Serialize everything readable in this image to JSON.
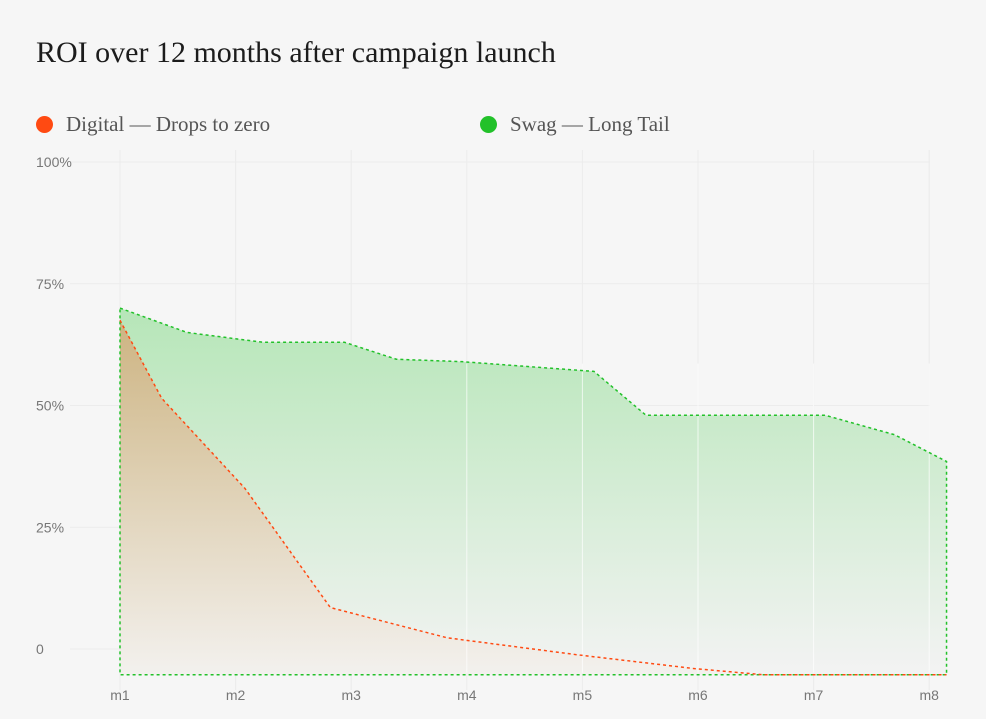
{
  "chart_data": {
    "type": "area",
    "title": "ROI over 12 months after campaign launch",
    "legend_position": "top",
    "grid": true,
    "yticks": [
      {
        "v": 100,
        "label": "100%"
      },
      {
        "v": 75,
        "label": "75%"
      },
      {
        "v": 50,
        "label": "50%"
      },
      {
        "v": 25,
        "label": "25%"
      },
      {
        "v": 0,
        "label": "0"
      }
    ],
    "xticks": [
      {
        "v": 1,
        "label": "m1"
      },
      {
        "v": 2,
        "label": "m2"
      },
      {
        "v": 3,
        "label": "m3"
      },
      {
        "v": 4,
        "label": "m4"
      },
      {
        "v": 5,
        "label": "m5"
      },
      {
        "v": 6,
        "label": "m6"
      },
      {
        "v": 7,
        "label": "m7"
      },
      {
        "v": 8,
        "label": "m8"
      }
    ],
    "ylim": [
      -5.3,
      100
    ],
    "series": [
      {
        "name": "Swag — Long Tail",
        "color": "#22c12a",
        "points": [
          [
            1,
            70
          ],
          [
            1.58,
            65
          ],
          [
            2.23,
            63
          ],
          [
            2.94,
            63
          ],
          [
            3.39,
            59.5
          ],
          [
            3.96,
            59
          ],
          [
            5.1,
            57
          ],
          [
            5.55,
            48
          ],
          [
            7.1,
            48
          ],
          [
            7.7,
            44
          ],
          [
            8.15,
            38.5
          ]
        ]
      },
      {
        "name": "Digital — Drops to zero",
        "color": "#ff4a12",
        "points": [
          [
            1,
            67.5
          ],
          [
            1.36,
            51.5
          ],
          [
            2.08,
            33
          ],
          [
            2.82,
            8.5
          ],
          [
            3.83,
            2.3
          ],
          [
            4.96,
            -1.2
          ],
          [
            5.96,
            -4
          ],
          [
            6.57,
            -5.3
          ],
          [
            8.15,
            -5.3
          ]
        ]
      }
    ]
  },
  "legend": [
    {
      "label": "Digital — Drops to zero",
      "color": "#ff4a12"
    },
    {
      "label": "Swag — Long Tail",
      "color": "#22c12a"
    }
  ]
}
